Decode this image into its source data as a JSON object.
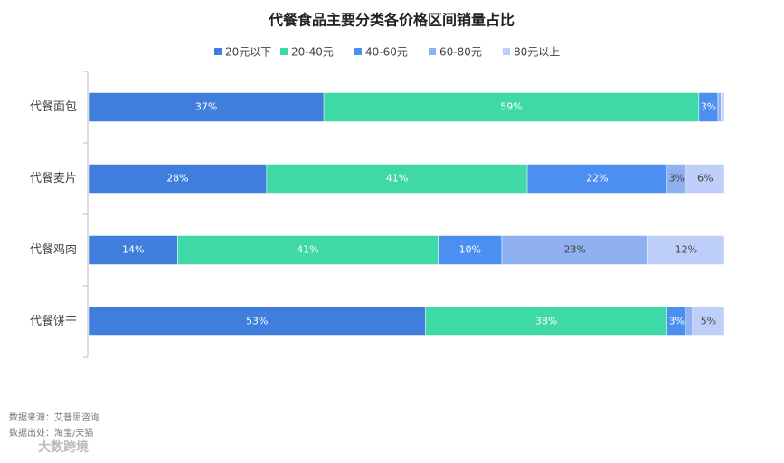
{
  "chart_data": {
    "type": "stacked-barh",
    "title": "代餐食品主要分类各价格区间销量占比",
    "categories": [
      "代餐面包",
      "代餐麦片",
      "代餐鸡肉",
      "代餐饼干"
    ],
    "xlim": [
      0,
      100
    ],
    "legend": "top",
    "series": [
      {
        "name": "20元以下",
        "color": "#3f7edc",
        "values": [
          37,
          28,
          14,
          53
        ],
        "value_labels": [
          "37%",
          "28%",
          "14%",
          "53%"
        ]
      },
      {
        "name": "20-40元",
        "color": "#3ed9a7",
        "values": [
          59,
          41,
          41,
          38
        ],
        "value_labels": [
          "59%",
          "41%",
          "41%",
          "38%"
        ]
      },
      {
        "name": "40-60元",
        "color": "#4b8ff0",
        "values": [
          3,
          22,
          10,
          3
        ],
        "value_labels": [
          "3%",
          "22%",
          "10%",
          "3%"
        ]
      },
      {
        "name": "60-80元",
        "color": "#8fb1f1",
        "values": [
          0.5,
          3,
          23,
          1
        ],
        "value_labels": [
          null,
          "3%",
          "23%",
          null
        ]
      },
      {
        "name": "80元以上",
        "color": "#bdcef8",
        "values": [
          0.5,
          6,
          12,
          5
        ],
        "value_labels": [
          null,
          "6%",
          "12%",
          "5%"
        ]
      }
    ]
  },
  "footer": {
    "source": "数据来源：艾普思咨询",
    "origin": "数据出处：淘宝/天猫",
    "logo": "大数跨境"
  }
}
